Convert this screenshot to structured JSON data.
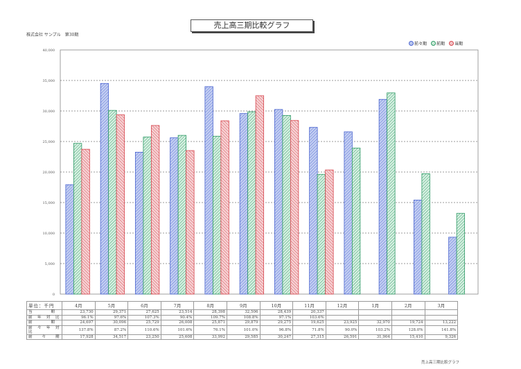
{
  "title": "売上高三期比較グラフ",
  "company": "株式会社 サンプル　第30期",
  "footer": "売上高三期比較グラフ",
  "legend": [
    {
      "name": "前々期",
      "color": "#4a64d0",
      "fill": "#b9c7ef"
    },
    {
      "name": "前期",
      "color": "#2f9a66",
      "fill": "#c9ead7"
    },
    {
      "name": "当期",
      "color": "#d6454d",
      "fill": "#f2c3c6"
    }
  ],
  "chart_data": {
    "type": "bar",
    "categories": [
      "4月",
      "5月",
      "6月",
      "7月",
      "8月",
      "9月",
      "10月",
      "11月",
      "12月",
      "1月",
      "2月",
      "3月"
    ],
    "ylim": [
      0,
      40000
    ],
    "yticks": [
      "0",
      "5,000",
      "10,000",
      "15,000",
      "20,000",
      "25,000",
      "30,000",
      "35,000",
      "40,000"
    ],
    "series": [
      {
        "name": "前々期",
        "values": [
          17928,
          34517,
          23250,
          25608,
          33992,
          29585,
          30247,
          27315,
          26591,
          31904,
          15410,
          9326
        ]
      },
      {
        "name": "前期",
        "values": [
          24697,
          30096,
          25729,
          26008,
          25871,
          29879,
          29275,
          19625,
          23925,
          32970,
          19724,
          13222
        ]
      },
      {
        "name": "当期",
        "values": [
          23730,
          29371,
          27625,
          23514,
          28398,
          32506,
          28439,
          20337,
          null,
          null,
          null,
          null
        ]
      }
    ]
  },
  "table": {
    "unit_label": "単位：千円",
    "headers": [
      "4月",
      "5月",
      "6月",
      "7月",
      "8月",
      "9月",
      "10月",
      "11月",
      "12月",
      "1月",
      "2月",
      "3月"
    ],
    "rows": [
      {
        "label": "当　　　　期",
        "cells": [
          "23,730",
          "29,371",
          "27,625",
          "23,514",
          "28,398",
          "32,506",
          "28,439",
          "20,337",
          "",
          "",
          "",
          ""
        ]
      },
      {
        "label": "前　年　対　比",
        "cells": [
          "96.1%",
          "97.6%",
          "107.3%",
          "90.4%",
          "109.7%",
          "108.8%",
          "97.1%",
          "103.6%",
          "",
          "",
          "",
          ""
        ]
      },
      {
        "label": "前　　　　期",
        "cells": [
          "24,697",
          "30,096",
          "25,729",
          "26,008",
          "25,871",
          "29,879",
          "29,275",
          "19,625",
          "23,925",
          "32,970",
          "19,724",
          "13,222"
        ]
      },
      {
        "label": "前　々　年　対　比",
        "cells": [
          "137.8%",
          "87.2%",
          "110.6%",
          "101.6%",
          "76.1%",
          "101.0%",
          "96.8%",
          "71.8%",
          "90.0%",
          "103.2%",
          "128.0%",
          "141.8%"
        ]
      },
      {
        "label": "前　　々　　期",
        "cells": [
          "17,928",
          "34,517",
          "23,250",
          "25,608",
          "33,992",
          "29,585",
          "30,247",
          "27,315",
          "26,591",
          "31,904",
          "15,410",
          "9,326"
        ]
      }
    ]
  }
}
